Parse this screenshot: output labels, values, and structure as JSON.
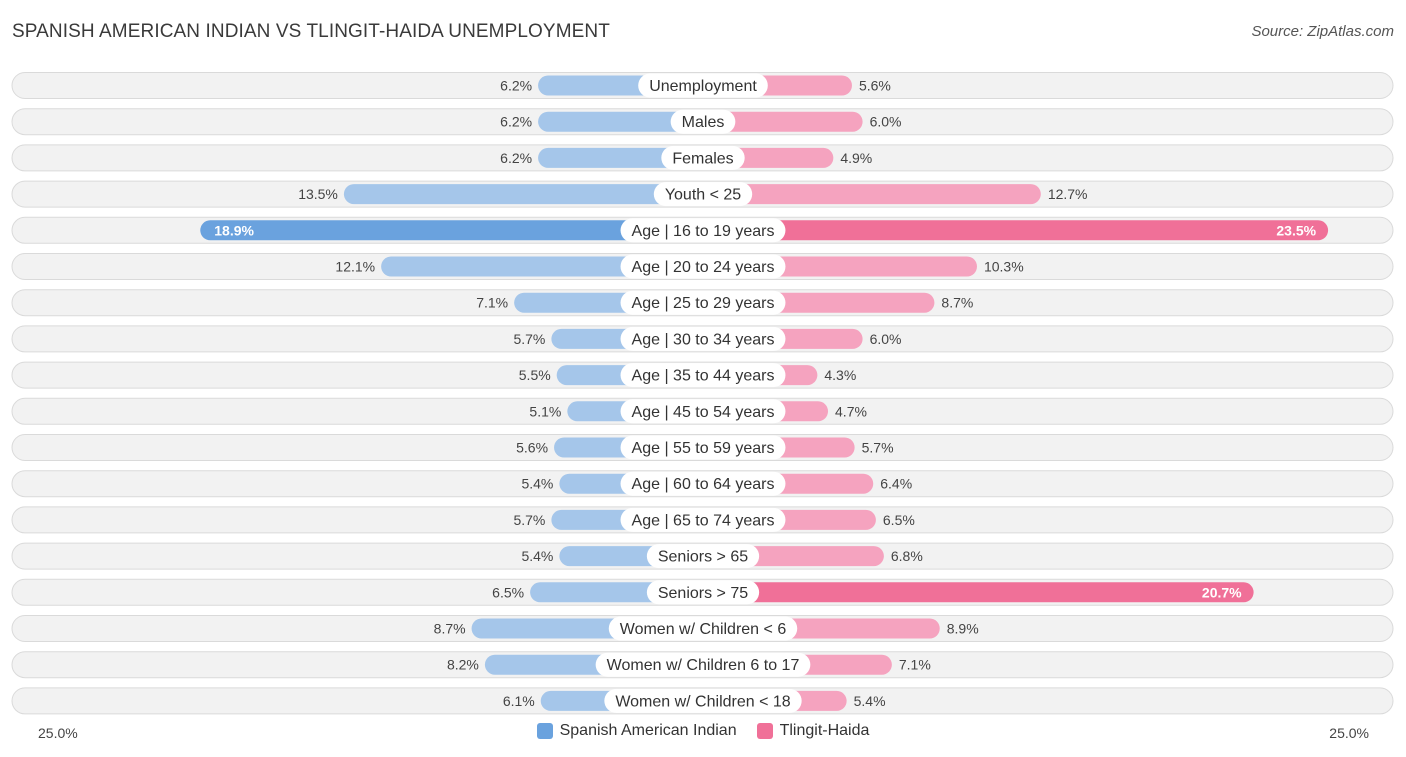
{
  "header": {
    "title": "SPANISH AMERICAN INDIAN VS TLINGIT-HAIDA UNEMPLOYMENT",
    "source": "Source: ZipAtlas.com"
  },
  "chart_data": {
    "type": "bar",
    "orientation": "diverging-horizontal",
    "categories": [
      "Unemployment",
      "Males",
      "Females",
      "Youth < 25",
      "Age | 16 to 19 years",
      "Age | 20 to 24 years",
      "Age | 25 to 29 years",
      "Age | 30 to 34 years",
      "Age | 35 to 44 years",
      "Age | 45 to 54 years",
      "Age | 55 to 59 years",
      "Age | 60 to 64 years",
      "Age | 65 to 74 years",
      "Seniors > 65",
      "Seniors > 75",
      "Women w/ Children < 6",
      "Women w/ Children 6 to 17",
      "Women w/ Children < 18"
    ],
    "series": [
      {
        "name": "Spanish American Indian",
        "side": "left",
        "color": "#a5c6ea",
        "highlight_color": "#6aa2de",
        "values": [
          6.2,
          6.2,
          6.2,
          13.5,
          18.9,
          12.1,
          7.1,
          5.7,
          5.5,
          5.1,
          5.6,
          5.4,
          5.7,
          5.4,
          6.5,
          8.7,
          8.2,
          6.1
        ],
        "labels": [
          "6.2%",
          "6.2%",
          "6.2%",
          "13.5%",
          "18.9%",
          "12.1%",
          "7.1%",
          "5.7%",
          "5.5%",
          "5.1%",
          "5.6%",
          "5.4%",
          "5.7%",
          "5.4%",
          "6.5%",
          "8.7%",
          "8.2%",
          "6.1%"
        ]
      },
      {
        "name": "Tlingit-Haida",
        "side": "right",
        "color": "#f5a3bf",
        "highlight_color": "#f07098",
        "values": [
          5.6,
          6.0,
          4.9,
          12.7,
          23.5,
          10.3,
          8.7,
          6.0,
          4.3,
          4.7,
          5.7,
          6.4,
          6.5,
          6.8,
          20.7,
          8.9,
          7.1,
          5.4
        ],
        "labels": [
          "5.6%",
          "6.0%",
          "4.9%",
          "12.7%",
          "23.5%",
          "10.3%",
          "8.7%",
          "6.0%",
          "4.3%",
          "4.7%",
          "5.7%",
          "6.4%",
          "6.5%",
          "6.8%",
          "20.7%",
          "8.9%",
          "7.1%",
          "5.4%"
        ]
      }
    ],
    "xlim": [
      -25,
      25
    ],
    "axis_labels": {
      "left": "25.0%",
      "right": "25.0%"
    },
    "legend": {
      "placement": "bottom-center"
    },
    "grid": false
  }
}
